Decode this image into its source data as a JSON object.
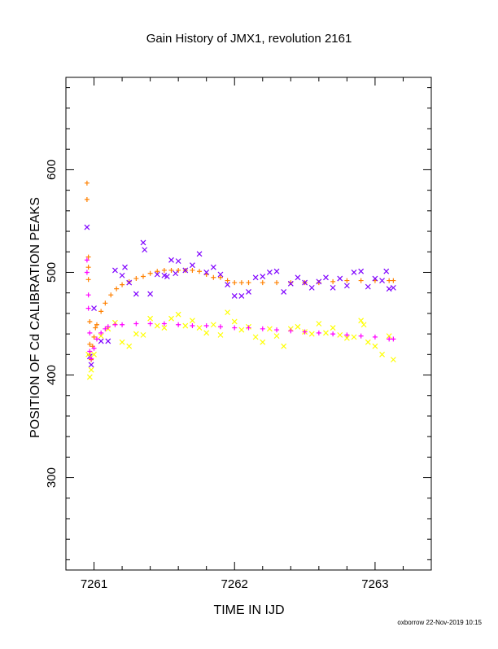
{
  "chart_data": {
    "type": "scatter",
    "title": "Gain History of JMX1, revolution 2161",
    "xlabel": "TIME IN IJD",
    "ylabel": "POSITION OF Cd CALIBRATION PEAKS",
    "xlim": [
      7260.8,
      7263.4
    ],
    "ylim": [
      210,
      690
    ],
    "x_ticks": [
      "7261",
      "7262",
      "7263"
    ],
    "y_ticks": [
      "300",
      "400",
      "500",
      "600"
    ],
    "grid": false,
    "series": [
      {
        "color": "#ff8000",
        "marker": "plus",
        "points": [
          [
            7260.95,
            587
          ],
          [
            7260.95,
            571
          ],
          [
            7260.96,
            515
          ],
          [
            7260.96,
            505
          ],
          [
            7260.96,
            493
          ],
          [
            7260.97,
            452
          ],
          [
            7260.97,
            430
          ],
          [
            7260.97,
            420
          ],
          [
            7260.98,
            415
          ],
          [
            7260.99,
            428
          ],
          [
            7261.0,
            437
          ],
          [
            7261.01,
            446
          ],
          [
            7261.02,
            449
          ],
          [
            7261.05,
            462
          ],
          [
            7261.08,
            470
          ],
          [
            7261.12,
            478
          ],
          [
            7261.16,
            484
          ],
          [
            7261.2,
            488
          ],
          [
            7261.25,
            491
          ],
          [
            7261.3,
            494
          ],
          [
            7261.35,
            496
          ],
          [
            7261.4,
            499
          ],
          [
            7261.45,
            501
          ],
          [
            7261.5,
            502
          ],
          [
            7261.55,
            502
          ],
          [
            7261.6,
            502
          ],
          [
            7261.65,
            502
          ],
          [
            7261.7,
            502
          ],
          [
            7261.75,
            501
          ],
          [
            7261.8,
            498
          ],
          [
            7261.85,
            495
          ],
          [
            7261.9,
            495
          ],
          [
            7261.95,
            492
          ],
          [
            7262.0,
            490
          ],
          [
            7262.05,
            490
          ],
          [
            7262.1,
            490
          ],
          [
            7262.2,
            490
          ],
          [
            7262.3,
            490
          ],
          [
            7262.4,
            490
          ],
          [
            7262.5,
            490
          ],
          [
            7262.6,
            490
          ],
          [
            7262.7,
            491
          ],
          [
            7262.8,
            492
          ],
          [
            7262.9,
            492
          ],
          [
            7263.0,
            492
          ],
          [
            7263.1,
            492
          ],
          [
            7263.13,
            492
          ]
        ]
      },
      {
        "color": "#7f00ff",
        "marker": "cross",
        "points": [
          [
            7260.95,
            544
          ],
          [
            7260.97,
            418
          ],
          [
            7260.98,
            410
          ],
          [
            7261.0,
            465
          ],
          [
            7261.05,
            433
          ],
          [
            7261.1,
            433
          ],
          [
            7261.15,
            502
          ],
          [
            7261.2,
            497
          ],
          [
            7261.22,
            505
          ],
          [
            7261.25,
            490
          ],
          [
            7261.3,
            479
          ],
          [
            7261.35,
            529
          ],
          [
            7261.36,
            522
          ],
          [
            7261.4,
            479
          ],
          [
            7261.45,
            498
          ],
          [
            7261.5,
            497
          ],
          [
            7261.52,
            496
          ],
          [
            7261.55,
            512
          ],
          [
            7261.58,
            499
          ],
          [
            7261.6,
            511
          ],
          [
            7261.65,
            502
          ],
          [
            7261.7,
            507
          ],
          [
            7261.75,
            518
          ],
          [
            7261.8,
            500
          ],
          [
            7261.85,
            505
          ],
          [
            7261.9,
            498
          ],
          [
            7261.95,
            488
          ],
          [
            7262.0,
            477
          ],
          [
            7262.05,
            477
          ],
          [
            7262.1,
            481
          ],
          [
            7262.15,
            495
          ],
          [
            7262.2,
            496
          ],
          [
            7262.25,
            500
          ],
          [
            7262.3,
            501
          ],
          [
            7262.35,
            481
          ],
          [
            7262.4,
            489
          ],
          [
            7262.45,
            495
          ],
          [
            7262.5,
            490
          ],
          [
            7262.55,
            485
          ],
          [
            7262.6,
            491
          ],
          [
            7262.65,
            495
          ],
          [
            7262.7,
            485
          ],
          [
            7262.75,
            494
          ],
          [
            7262.8,
            487
          ],
          [
            7262.85,
            500
          ],
          [
            7262.9,
            501
          ],
          [
            7262.95,
            486
          ],
          [
            7263.0,
            494
          ],
          [
            7263.05,
            492
          ],
          [
            7263.08,
            501
          ],
          [
            7263.1,
            484
          ],
          [
            7263.13,
            485
          ]
        ]
      },
      {
        "color": "#ffff00",
        "marker": "cross",
        "points": [
          [
            7260.96,
            420
          ],
          [
            7260.97,
            398
          ],
          [
            7260.98,
            405
          ],
          [
            7261.0,
            420
          ],
          [
            7261.05,
            438
          ],
          [
            7261.1,
            445
          ],
          [
            7261.15,
            451
          ],
          [
            7261.2,
            432
          ],
          [
            7261.25,
            428
          ],
          [
            7261.3,
            440
          ],
          [
            7261.35,
            439
          ],
          [
            7261.4,
            455
          ],
          [
            7261.45,
            448
          ],
          [
            7261.5,
            446
          ],
          [
            7261.55,
            455
          ],
          [
            7261.6,
            459
          ],
          [
            7261.65,
            448
          ],
          [
            7261.7,
            453
          ],
          [
            7261.75,
            446
          ],
          [
            7261.8,
            441
          ],
          [
            7261.85,
            449
          ],
          [
            7261.9,
            439
          ],
          [
            7261.95,
            461
          ],
          [
            7262.0,
            452
          ],
          [
            7262.05,
            444
          ],
          [
            7262.1,
            447
          ],
          [
            7262.15,
            437
          ],
          [
            7262.2,
            432
          ],
          [
            7262.25,
            445
          ],
          [
            7262.3,
            438
          ],
          [
            7262.35,
            428
          ],
          [
            7262.4,
            445
          ],
          [
            7262.45,
            447
          ],
          [
            7262.5,
            442
          ],
          [
            7262.55,
            440
          ],
          [
            7262.6,
            450
          ],
          [
            7262.65,
            441
          ],
          [
            7262.7,
            446
          ],
          [
            7262.75,
            439
          ],
          [
            7262.8,
            436
          ],
          [
            7262.85,
            437
          ],
          [
            7262.9,
            453
          ],
          [
            7262.92,
            449
          ],
          [
            7262.95,
            432
          ],
          [
            7263.0,
            428
          ],
          [
            7263.05,
            420
          ],
          [
            7263.1,
            438
          ],
          [
            7263.13,
            415
          ]
        ]
      },
      {
        "color": "#ff00ff",
        "marker": "plus",
        "points": [
          [
            7260.95,
            512
          ],
          [
            7260.95,
            500
          ],
          [
            7260.96,
            478
          ],
          [
            7260.96,
            465
          ],
          [
            7260.97,
            441
          ],
          [
            7260.97,
            423
          ],
          [
            7260.98,
            416
          ],
          [
            7261.0,
            426
          ],
          [
            7261.02,
            435
          ],
          [
            7261.05,
            441
          ],
          [
            7261.08,
            445
          ],
          [
            7261.1,
            447
          ],
          [
            7261.15,
            449
          ],
          [
            7261.2,
            449
          ],
          [
            7261.3,
            450
          ],
          [
            7261.4,
            450
          ],
          [
            7261.5,
            450
          ],
          [
            7261.6,
            449
          ],
          [
            7261.7,
            448
          ],
          [
            7261.8,
            448
          ],
          [
            7261.9,
            447
          ],
          [
            7262.0,
            446
          ],
          [
            7262.1,
            446
          ],
          [
            7262.2,
            445
          ],
          [
            7262.3,
            444
          ],
          [
            7262.4,
            443
          ],
          [
            7262.5,
            442
          ],
          [
            7262.6,
            441
          ],
          [
            7262.7,
            440
          ],
          [
            7262.8,
            439
          ],
          [
            7262.9,
            438
          ],
          [
            7263.0,
            437
          ],
          [
            7263.1,
            435
          ],
          [
            7263.13,
            435
          ]
        ]
      }
    ],
    "credit": "oxborrow 22-Nov-2019 10:15"
  }
}
